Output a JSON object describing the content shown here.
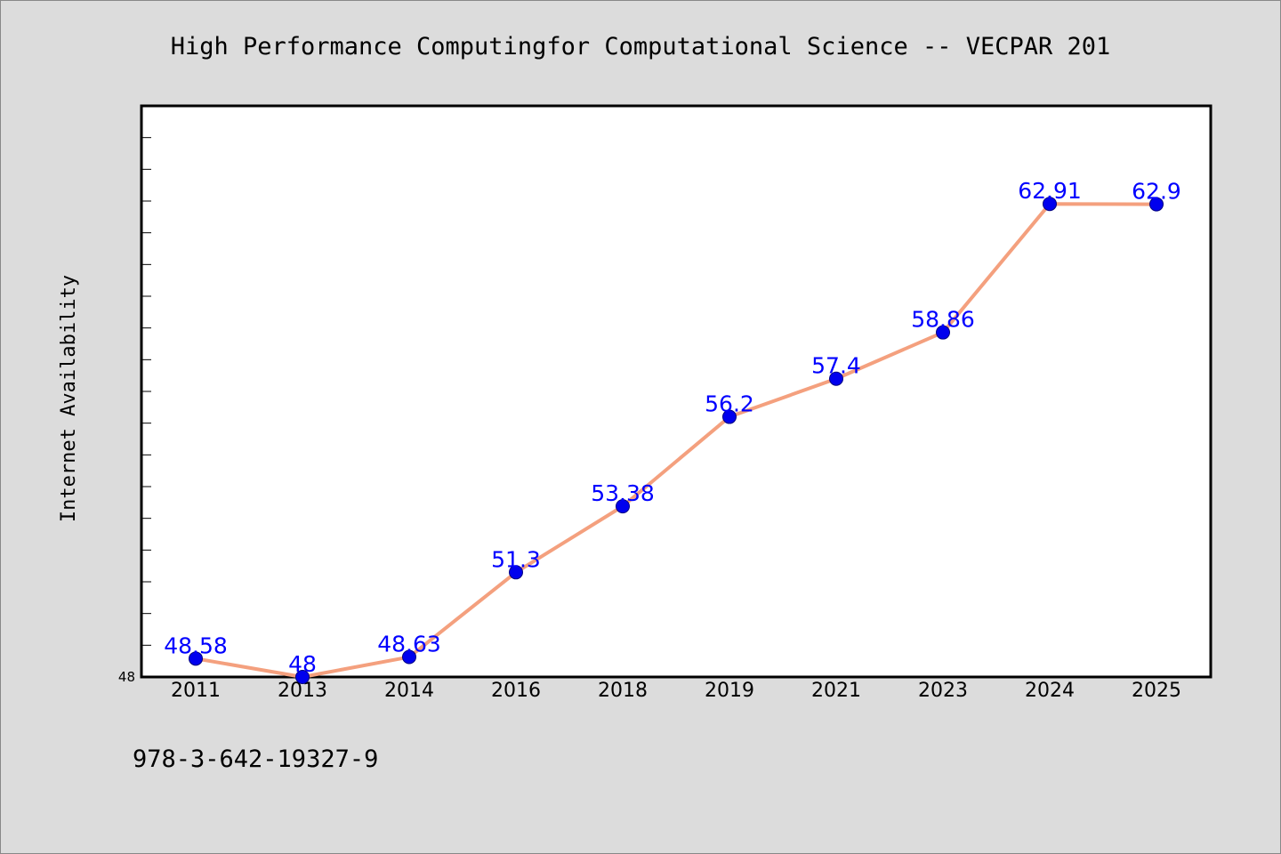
{
  "chart_data": {
    "type": "line",
    "title": "High Performance Computingfor Computational Science -- VECPAR 201",
    "xlabel": "",
    "ylabel": "Internet Availability",
    "categories": [
      "2011",
      "2013",
      "2014",
      "2016",
      "2018",
      "2019",
      "2021",
      "2023",
      "2024",
      "2025"
    ],
    "series": [
      {
        "values": [
          48.58,
          48,
          48.63,
          51.3,
          53.38,
          56.2,
          57.4,
          58.86,
          62.91,
          62.9
        ],
        "labels": [
          "48.58",
          "48",
          "48.63",
          "51.3",
          "53.38",
          "56.2",
          "57.4",
          "58.86",
          "62.91",
          "62.9"
        ],
        "line_color": "#f4a07e",
        "marker_color": "#0000ee",
        "label_color": "#0000ff"
      }
    ],
    "yticks": [
      "48"
    ],
    "ylim": [
      48,
      66
    ],
    "grid": false,
    "legend": "none"
  },
  "footer": {
    "isbn": "978-3-642-19327-9"
  },
  "colors": {
    "background": "#dcdcdc",
    "plot_background": "#ffffff"
  }
}
